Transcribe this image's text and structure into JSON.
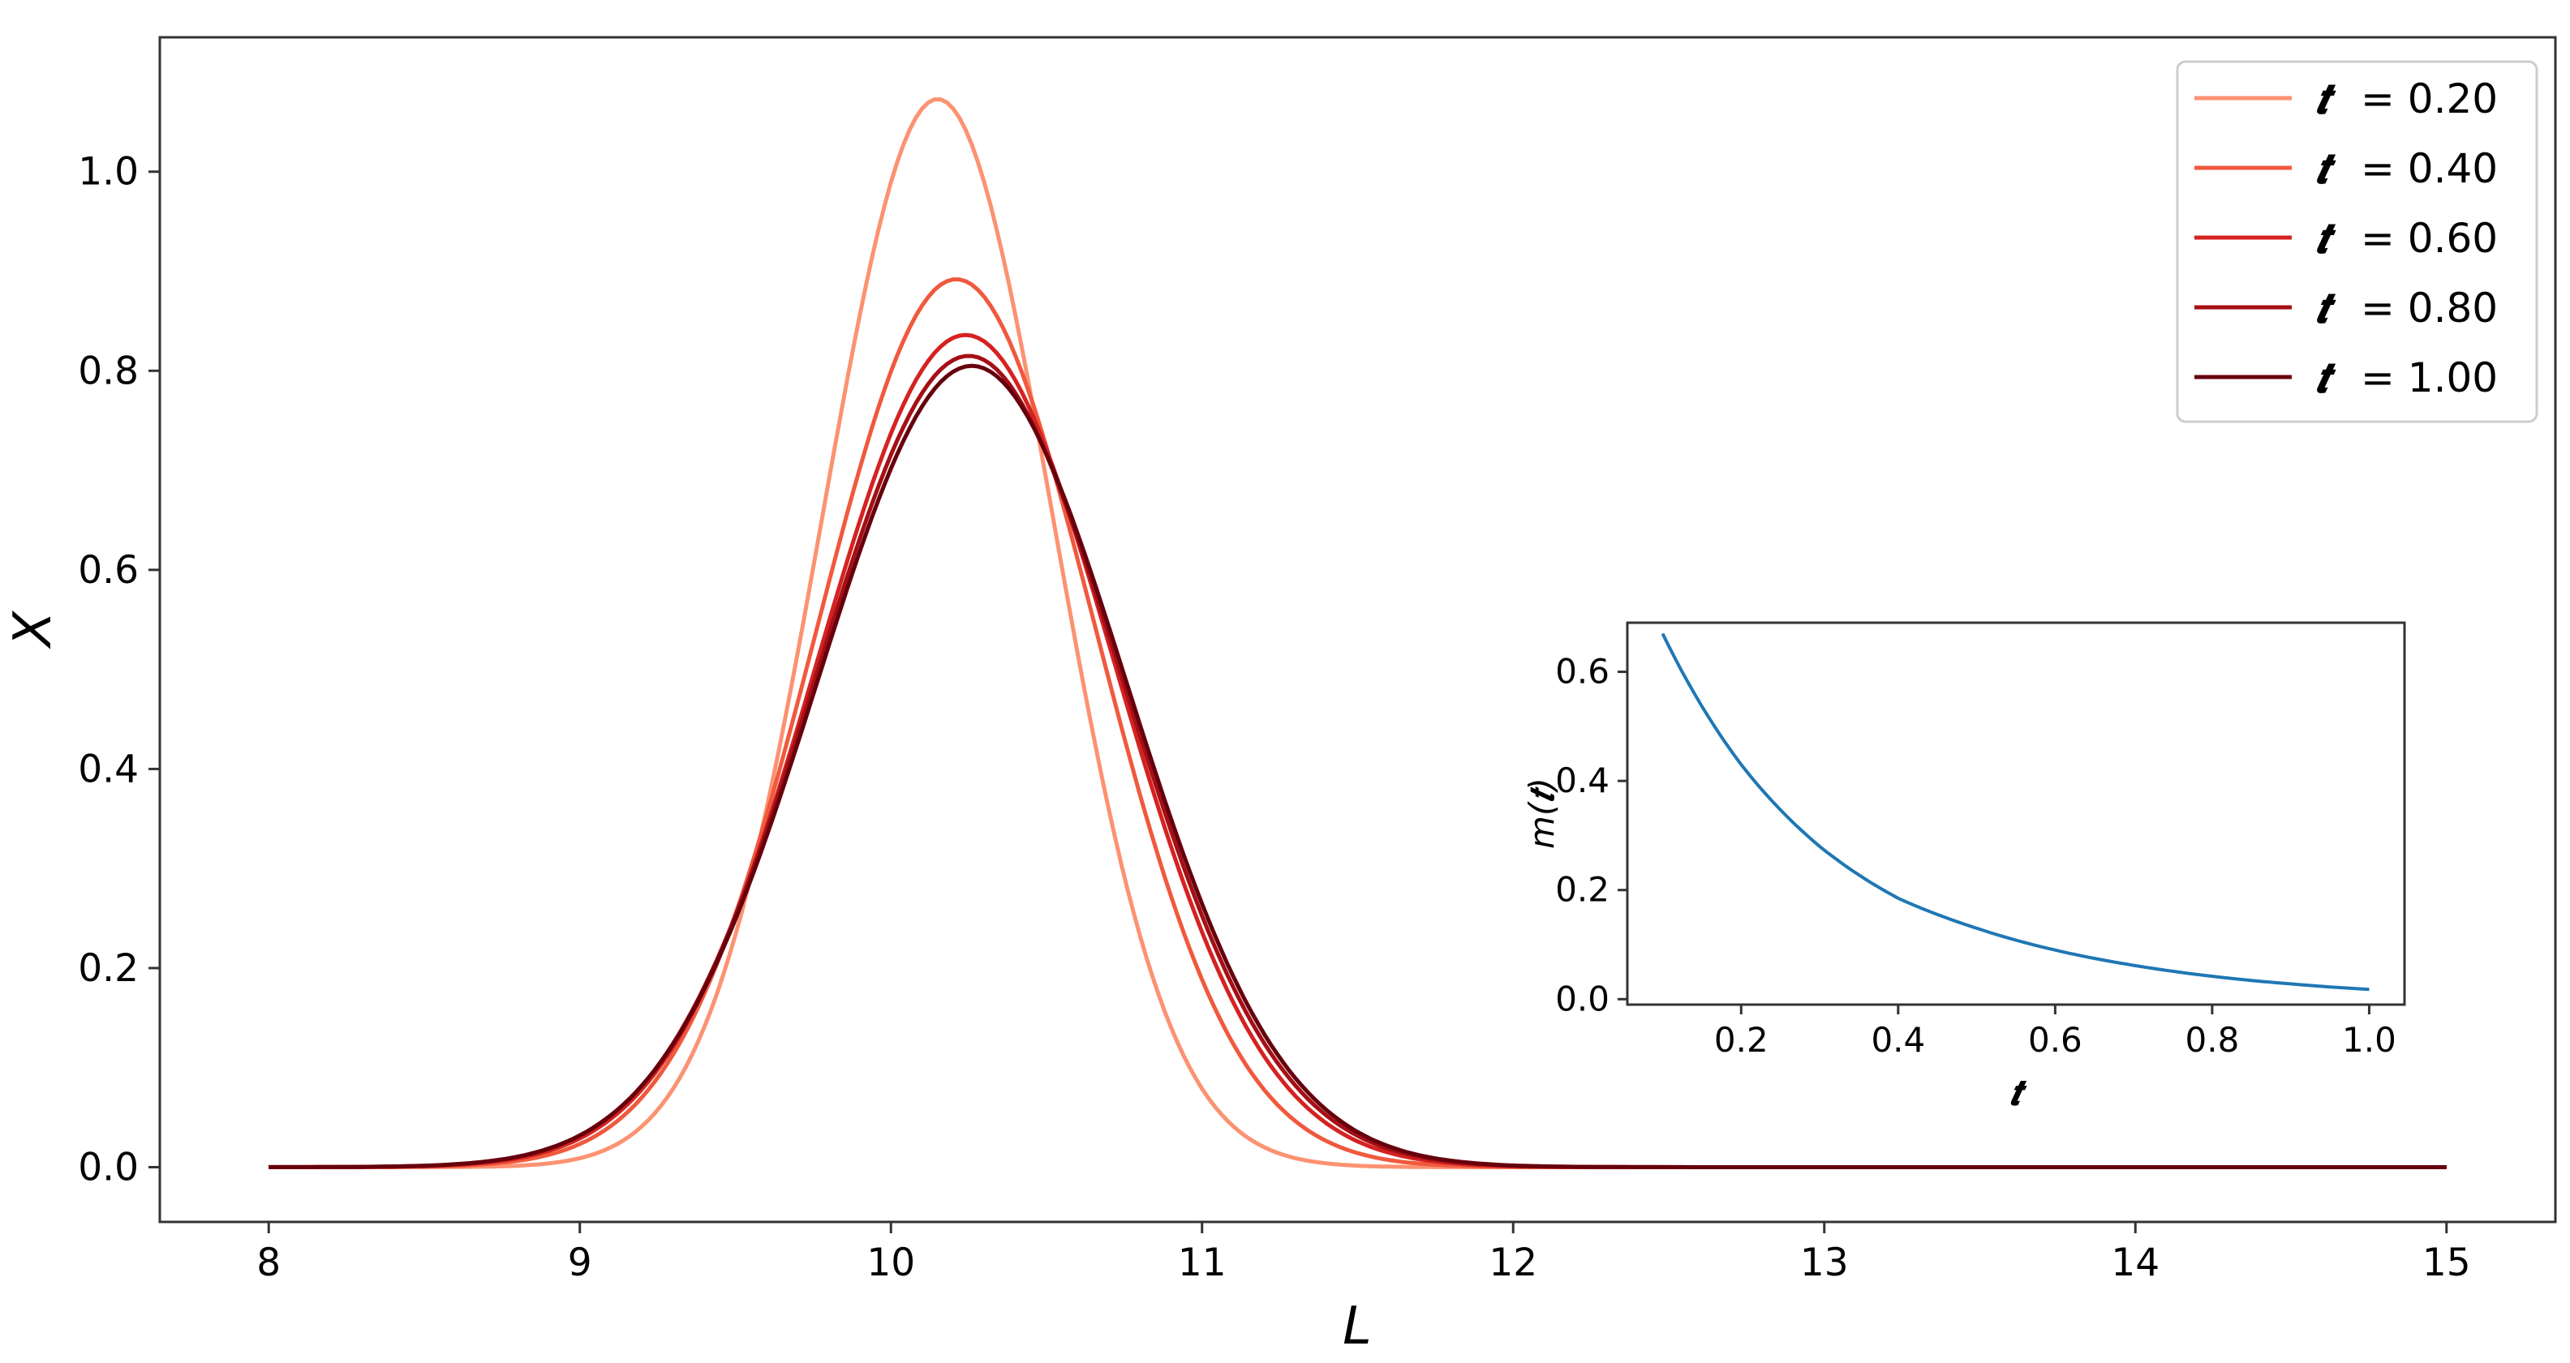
{
  "chart_data": [
    {
      "type": "line",
      "title": "",
      "xlabel": "L",
      "ylabel": "X",
      "xlim": [
        7.65,
        15.35
      ],
      "ylim": [
        -0.055,
        1.135
      ],
      "xticks": [
        8,
        9,
        10,
        11,
        12,
        13,
        14,
        15
      ],
      "xtick_labels": [
        "8",
        "9",
        "10",
        "11",
        "12",
        "13",
        "14",
        "15"
      ],
      "yticks": [
        0.0,
        0.2,
        0.4,
        0.6,
        0.8,
        1.0
      ],
      "ytick_labels": [
        "0.0",
        "0.2",
        "0.4",
        "0.6",
        "0.8",
        "1.0"
      ],
      "grid": false,
      "legend": {
        "position": "top-right",
        "symbol": "𝒕",
        "entries": [
          "= 0.20",
          "= 0.40",
          "= 0.60",
          "= 0.80",
          "= 1.00"
        ]
      },
      "x_range": [
        8,
        15
      ],
      "series": [
        {
          "name": "𝒕 = 0.20",
          "color": "#fc9272",
          "mean": 10.15,
          "sd": 0.372,
          "peak": 1.073
        },
        {
          "name": "𝒕 = 0.40",
          "color": "#f0593e",
          "mean": 10.21,
          "sd": 0.448,
          "peak": 0.892
        },
        {
          "name": "𝒕 = 0.60",
          "color": "#d52221",
          "mean": 10.24,
          "sd": 0.478,
          "peak": 0.836
        },
        {
          "name": "𝒕 = 0.80",
          "color": "#a50f15",
          "mean": 10.25,
          "sd": 0.49,
          "peak": 0.815
        },
        {
          "name": "𝒕 = 1.00",
          "color": "#67000d",
          "mean": 10.26,
          "sd": 0.496,
          "peak": 0.805
        }
      ]
    },
    {
      "type": "line",
      "title": "",
      "xlabel": "𝒕",
      "ylabel": "m(𝒕)",
      "xlim": [
        0.055,
        1.045
      ],
      "ylim": [
        -0.01,
        0.69
      ],
      "xticks": [
        0.2,
        0.4,
        0.6,
        0.8,
        1.0
      ],
      "xtick_labels": [
        "0.2",
        "0.4",
        "0.6",
        "0.8",
        "1.0"
      ],
      "yticks": [
        0.0,
        0.2,
        0.4,
        0.6
      ],
      "ytick_labels": [
        "0.0",
        "0.2",
        "0.4",
        "0.6"
      ],
      "grid": false,
      "x": [
        0.1,
        0.2,
        0.3,
        0.4,
        0.5,
        0.6,
        0.7,
        0.8,
        0.9,
        1.0
      ],
      "series": [
        {
          "color": "#1f77b4",
          "values": [
            0.67,
            0.43,
            0.28,
            0.185,
            0.13,
            0.09,
            0.062,
            0.042,
            0.028,
            0.018
          ]
        }
      ]
    }
  ]
}
